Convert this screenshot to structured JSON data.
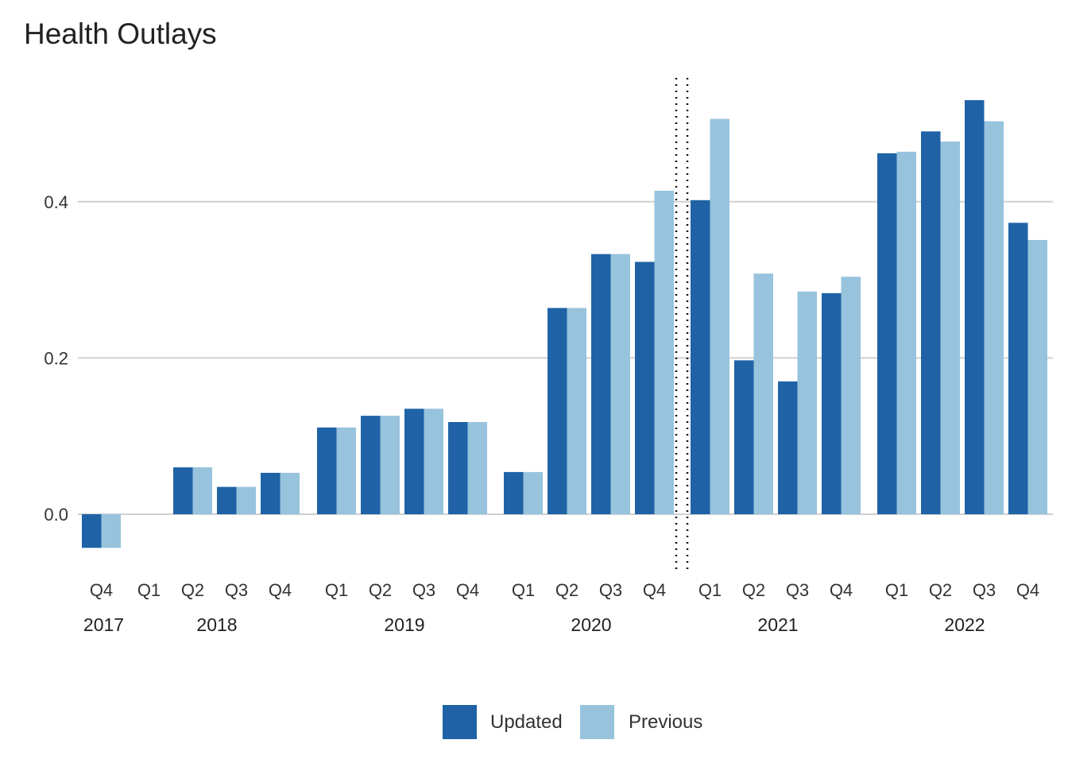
{
  "chart_data": {
    "type": "bar",
    "title": "Health Outlays",
    "xlabel": "",
    "ylabel": "",
    "ylim": [
      -0.07,
      0.55
    ],
    "yticks": [
      0.0,
      0.2,
      0.4
    ],
    "ytick_labels": [
      "0.0",
      "0.2",
      "0.4"
    ],
    "grid": true,
    "legend_position": "bottom",
    "groups": [
      {
        "year": "2017",
        "quarters": [
          "Q4"
        ]
      },
      {
        "year": "2018",
        "quarters": [
          "Q1",
          "Q2",
          "Q3",
          "Q4"
        ]
      },
      {
        "year": "2019",
        "quarters": [
          "Q1",
          "Q2",
          "Q3",
          "Q4"
        ]
      },
      {
        "year": "2020",
        "quarters": [
          "Q1",
          "Q2",
          "Q3",
          "Q4"
        ]
      },
      {
        "year": "2021",
        "quarters": [
          "Q1",
          "Q2",
          "Q3",
          "Q4"
        ]
      },
      {
        "year": "2022",
        "quarters": [
          "Q1",
          "Q2",
          "Q3",
          "Q4"
        ]
      }
    ],
    "series": [
      {
        "name": "Updated",
        "color": "#1f63a6",
        "values": [
          -0.043,
          null,
          0.06,
          0.035,
          0.053,
          0.111,
          0.126,
          0.135,
          0.118,
          0.054,
          0.264,
          0.333,
          0.323,
          0.402,
          0.197,
          0.17,
          0.283,
          0.462,
          0.49,
          0.53,
          0.373
        ]
      },
      {
        "name": "Previous",
        "color": "#97c3dd",
        "values": [
          -0.043,
          null,
          0.06,
          0.035,
          0.053,
          0.111,
          0.126,
          0.135,
          0.118,
          0.054,
          0.264,
          0.333,
          0.414,
          0.506,
          0.308,
          0.285,
          0.304,
          0.464,
          0.477,
          0.503,
          0.351
        ]
      }
    ],
    "annotations": [
      {
        "type": "vertical-dotted-lines",
        "between": [
          "2020 Q4",
          "2021 Q1"
        ]
      }
    ]
  }
}
